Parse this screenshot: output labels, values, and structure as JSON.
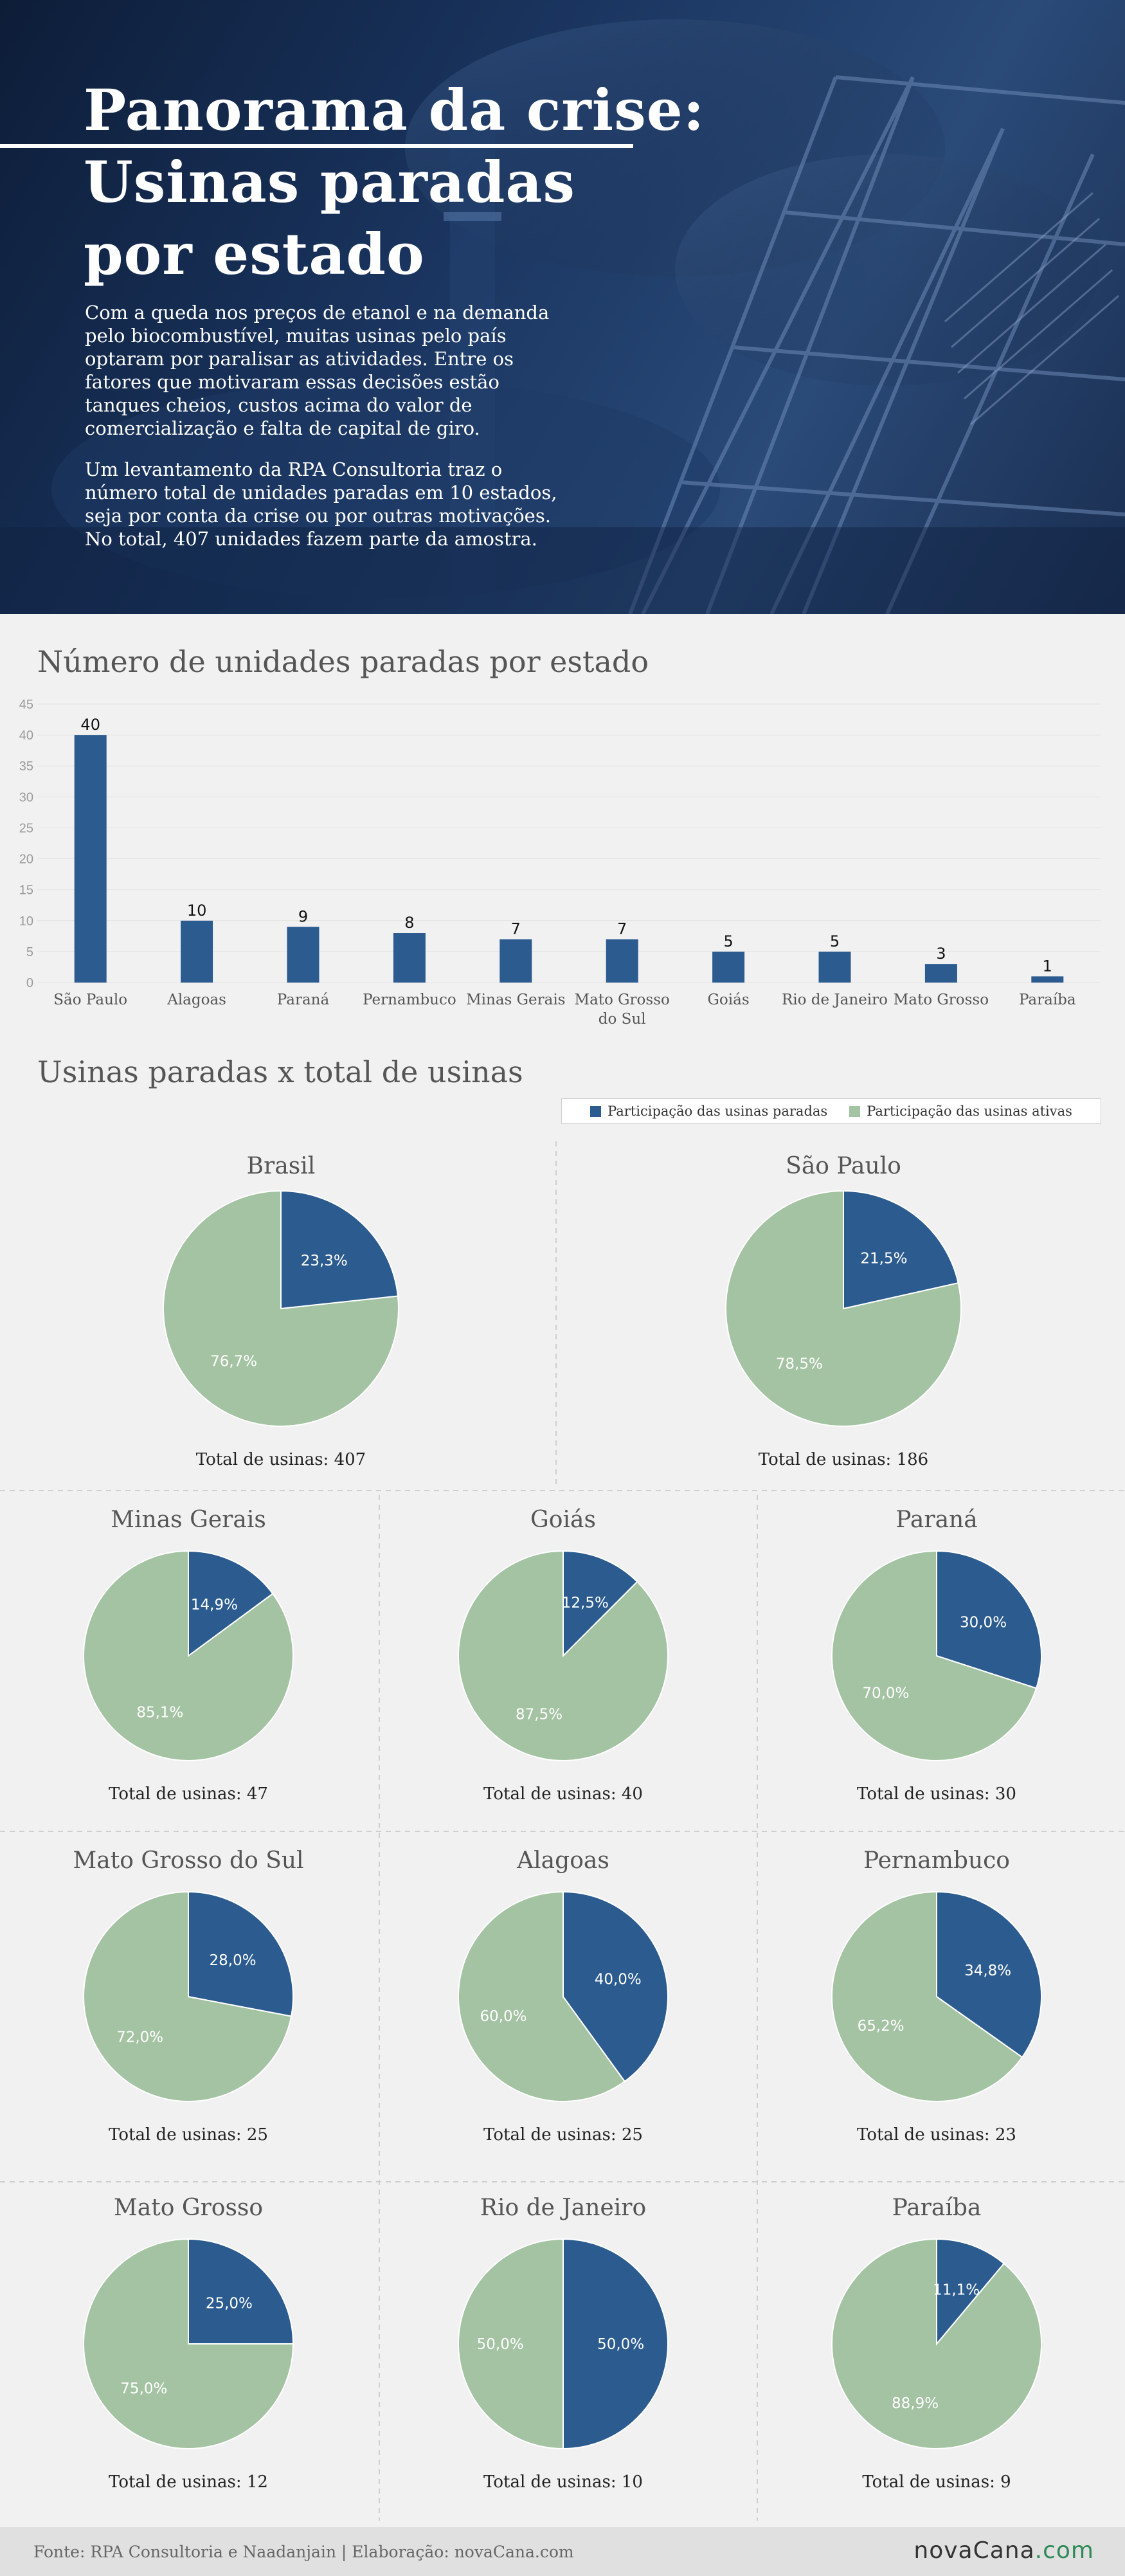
{
  "hero": {
    "title_lines": [
      "Panorama da crise:",
      "Usinas paradas",
      "por estado"
    ],
    "paragraph1": "Com a queda nos preços de etanol e na demanda pelo biocombustível, muitas usinas pelo país optaram por paralisar as atividades. Entre os fatores que motivaram essas decisões estão tanques cheios, custos acima do valor de comercialização e falta de capital de giro.",
    "paragraph2": "Um levantamento da RPA Consultoria traz o número total de unidades paradas em 10 estados, seja por conta da crise ou por outras motivações. No total, 407 unidades fazem parte da amostra."
  },
  "section_pies_title": "Usinas paradas x total de usinas",
  "legend": {
    "stopped": "Participação das usinas paradas",
    "active": "Participação das usinas ativas"
  },
  "colors": {
    "stopped": "#2b5b8f",
    "active": "#a4c3a3",
    "grid": "#e3e3e3"
  },
  "chart_data": [
    {
      "type": "bar",
      "title": "Número de unidades paradas por estado",
      "categories": [
        "São Paulo",
        "Alagoas",
        "Paraná",
        "Pernambuco",
        "Minas Gerais",
        "Mato Grosso do Sul",
        "Goiás",
        "Rio de Janeiro",
        "Mato Grosso",
        "Paraíba"
      ],
      "values": [
        40,
        10,
        9,
        8,
        7,
        7,
        5,
        5,
        3,
        1
      ],
      "ylim": [
        0,
        45
      ],
      "yticks": [
        0,
        5,
        10,
        15,
        20,
        25,
        30,
        35,
        40,
        45
      ],
      "grid": true
    },
    {
      "type": "pie",
      "legend": [
        "Participação das usinas paradas",
        "Participação das usinas ativas"
      ],
      "pies": [
        {
          "state": "Brasil",
          "stopped": 23.3,
          "active": 76.7,
          "stopped_label": "23,3%",
          "active_label": "76,7%",
          "total_label": "Total de usinas: 407"
        },
        {
          "state": "São Paulo",
          "stopped": 21.5,
          "active": 78.5,
          "stopped_label": "21,5%",
          "active_label": "78,5%",
          "total_label": "Total de usinas: 186"
        },
        {
          "state": "Minas Gerais",
          "stopped": 14.9,
          "active": 85.1,
          "stopped_label": "14,9%",
          "active_label": "85,1%",
          "total_label": "Total de usinas: 47"
        },
        {
          "state": "Goiás",
          "stopped": 12.5,
          "active": 87.5,
          "stopped_label": "12,5%",
          "active_label": "87,5%",
          "total_label": "Total de usinas: 40"
        },
        {
          "state": "Paraná",
          "stopped": 30.0,
          "active": 70.0,
          "stopped_label": "30,0%",
          "active_label": "70,0%",
          "total_label": "Total de usinas: 30"
        },
        {
          "state": "Mato Grosso do Sul",
          "stopped": 28.0,
          "active": 72.0,
          "stopped_label": "28,0%",
          "active_label": "72,0%",
          "total_label": "Total de usinas: 25"
        },
        {
          "state": "Alagoas",
          "stopped": 40.0,
          "active": 60.0,
          "stopped_label": "40,0%",
          "active_label": "60,0%",
          "total_label": "Total de usinas: 25"
        },
        {
          "state": "Pernambuco",
          "stopped": 34.8,
          "active": 65.2,
          "stopped_label": "34,8%",
          "active_label": "65,2%",
          "total_label": "Total de usinas: 23"
        },
        {
          "state": "Mato Grosso",
          "stopped": 25.0,
          "active": 75.0,
          "stopped_label": "25,0%",
          "active_label": "75,0%",
          "total_label": "Total de usinas: 12"
        },
        {
          "state": "Rio de Janeiro",
          "stopped": 50.0,
          "active": 50.0,
          "stopped_label": "50,0%",
          "active_label": "50,0%",
          "total_label": "Total de usinas: 10"
        },
        {
          "state": "Paraíba",
          "stopped": 11.1,
          "active": 88.9,
          "stopped_label": "11,1%",
          "active_label": "88,9%",
          "total_label": "Total de usinas: 9"
        }
      ]
    }
  ],
  "footer": {
    "source": "Fonte: RPA Consultoria e Naadanjain | Elaboração: novaCana.com",
    "logo_main": "novaCana",
    "logo_suffix": ".com"
  }
}
